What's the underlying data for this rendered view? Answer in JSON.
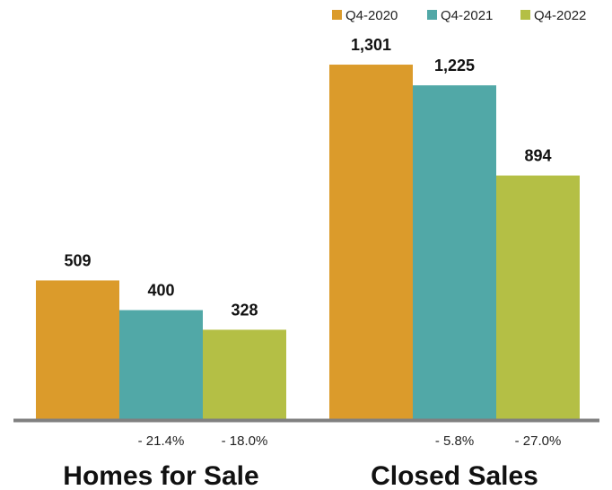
{
  "chart_data": [
    {
      "type": "bar",
      "title": "Homes for Sale",
      "series": [
        {
          "name": "Q4-2020",
          "value": 509,
          "value_label": "509",
          "change_label": "",
          "color": "#db9b2b"
        },
        {
          "name": "Q4-2021",
          "value": 400,
          "value_label": "400",
          "change_label": "- 21.4%",
          "color": "#51a8a7"
        },
        {
          "name": "Q4-2022",
          "value": 328,
          "value_label": "328",
          "change_label": "- 18.0%",
          "color": "#b4bf45"
        }
      ]
    },
    {
      "type": "bar",
      "title": "Closed Sales",
      "series": [
        {
          "name": "Q4-2020",
          "value": 1301,
          "value_label": "1,301",
          "change_label": "",
          "color": "#db9b2b"
        },
        {
          "name": "Q4-2021",
          "value": 1225,
          "value_label": "1,225",
          "change_label": "- 5.8%",
          "color": "#51a8a7"
        },
        {
          "name": "Q4-2022",
          "value": 894,
          "value_label": "894",
          "change_label": "- 27.0%",
          "color": "#b4bf45"
        }
      ]
    }
  ],
  "legend": {
    "placement": "top-right",
    "items": [
      {
        "label": "Q4-2020",
        "color": "#db9b2b"
      },
      {
        "label": "Q4-2021",
        "color": "#51a8a7"
      },
      {
        "label": "Q4-2022",
        "color": "#b4bf45"
      }
    ]
  },
  "axis_color": "#808080"
}
